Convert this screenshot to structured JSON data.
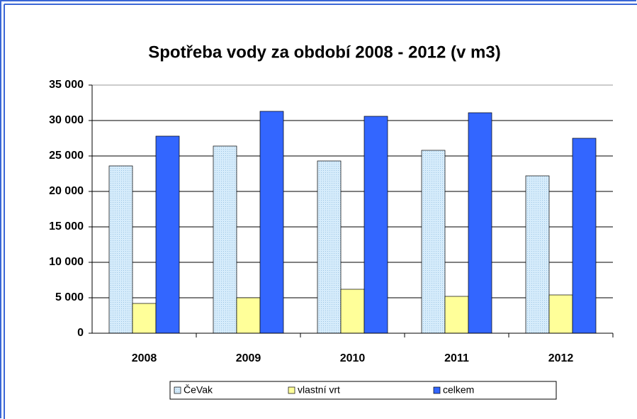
{
  "chart_data": {
    "type": "bar",
    "title": "Spotřeba vody za období 2008 - 2012 (v m3)",
    "categories": [
      "2008",
      "2009",
      "2010",
      "2011",
      "2012"
    ],
    "series": [
      {
        "name": "ČeVak",
        "color": "#cce4f7",
        "values": [
          23600,
          26400,
          24300,
          25800,
          22200
        ]
      },
      {
        "name": "vlastní vrt",
        "color": "#ffff99",
        "values": [
          4200,
          5000,
          6200,
          5200,
          5400
        ]
      },
      {
        "name": "celkem",
        "color": "#3366ff",
        "values": [
          27800,
          31300,
          30600,
          31100,
          27500
        ]
      }
    ],
    "ylim": [
      0,
      35000
    ],
    "yticks": [
      {
        "value": 0,
        "label": "0"
      },
      {
        "value": 5000,
        "label": "5 000"
      },
      {
        "value": 10000,
        "label": "10 000"
      },
      {
        "value": 15000,
        "label": "15 000"
      },
      {
        "value": 20000,
        "label": "20 000"
      },
      {
        "value": 25000,
        "label": "25 000"
      },
      {
        "value": 30000,
        "label": "30 000"
      },
      {
        "value": 35000,
        "label": "35 000"
      }
    ],
    "grid": true,
    "legend": "bottom"
  }
}
